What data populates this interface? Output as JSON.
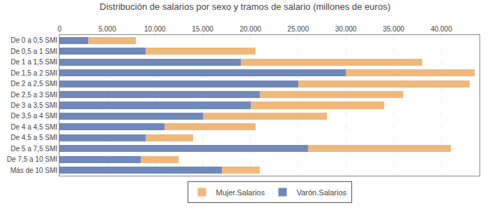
{
  "chart_data": {
    "type": "bar",
    "title": "Distribución de salarios por sexo y tramos de salario (millones de euros)",
    "orientation": "horizontal",
    "stacked": true,
    "categories": [
      "De 0 a 0,5 SMI",
      "De 0,5 a 1 SMI",
      "De 1 a 1,5 SMI",
      "De 1,5 a 2 SMI",
      "De 2 a 2,5 SMI",
      "De 2,5 a 3 SMI",
      "De 3 a 3,5 SMI",
      "De 3,5 a 4 SMI",
      "De 4 a 4,5 SMI",
      "De 4,5 a 5 SMI",
      "De 5 a 7,5 SMI",
      "De 7,5 a 10 SMI",
      "Más de 10 SMI"
    ],
    "series": [
      {
        "name": "Varón.Salarios",
        "color": "#7088ba",
        "values": [
          3000,
          9000,
          19000,
          30000,
          25000,
          21000,
          20000,
          15000,
          11000,
          9000,
          26000,
          8500,
          17000
        ]
      },
      {
        "name": "Mujer.Salarios",
        "color": "#f0b87a",
        "values": [
          5000,
          11500,
          19000,
          13500,
          18000,
          15000,
          14000,
          13000,
          9500,
          5000,
          15000,
          4000,
          4000
        ]
      }
    ],
    "xlim": [
      0,
      44000
    ],
    "xticks": [
      0,
      {
        "value": 5000,
        "label": "5.000"
      },
      {
        "value": 10000,
        "label": "10.000"
      },
      {
        "value": 15000,
        "label": "15.000"
      },
      {
        "value": 20000,
        "label": "20.000"
      },
      {
        "value": 25000,
        "label": "25.000"
      },
      {
        "value": 30000,
        "label": "30.000"
      },
      {
        "value": 35000,
        "label": "35.000"
      },
      {
        "value": 40000,
        "label": "40.000"
      }
    ],
    "grid": true,
    "legend": "bottom"
  }
}
